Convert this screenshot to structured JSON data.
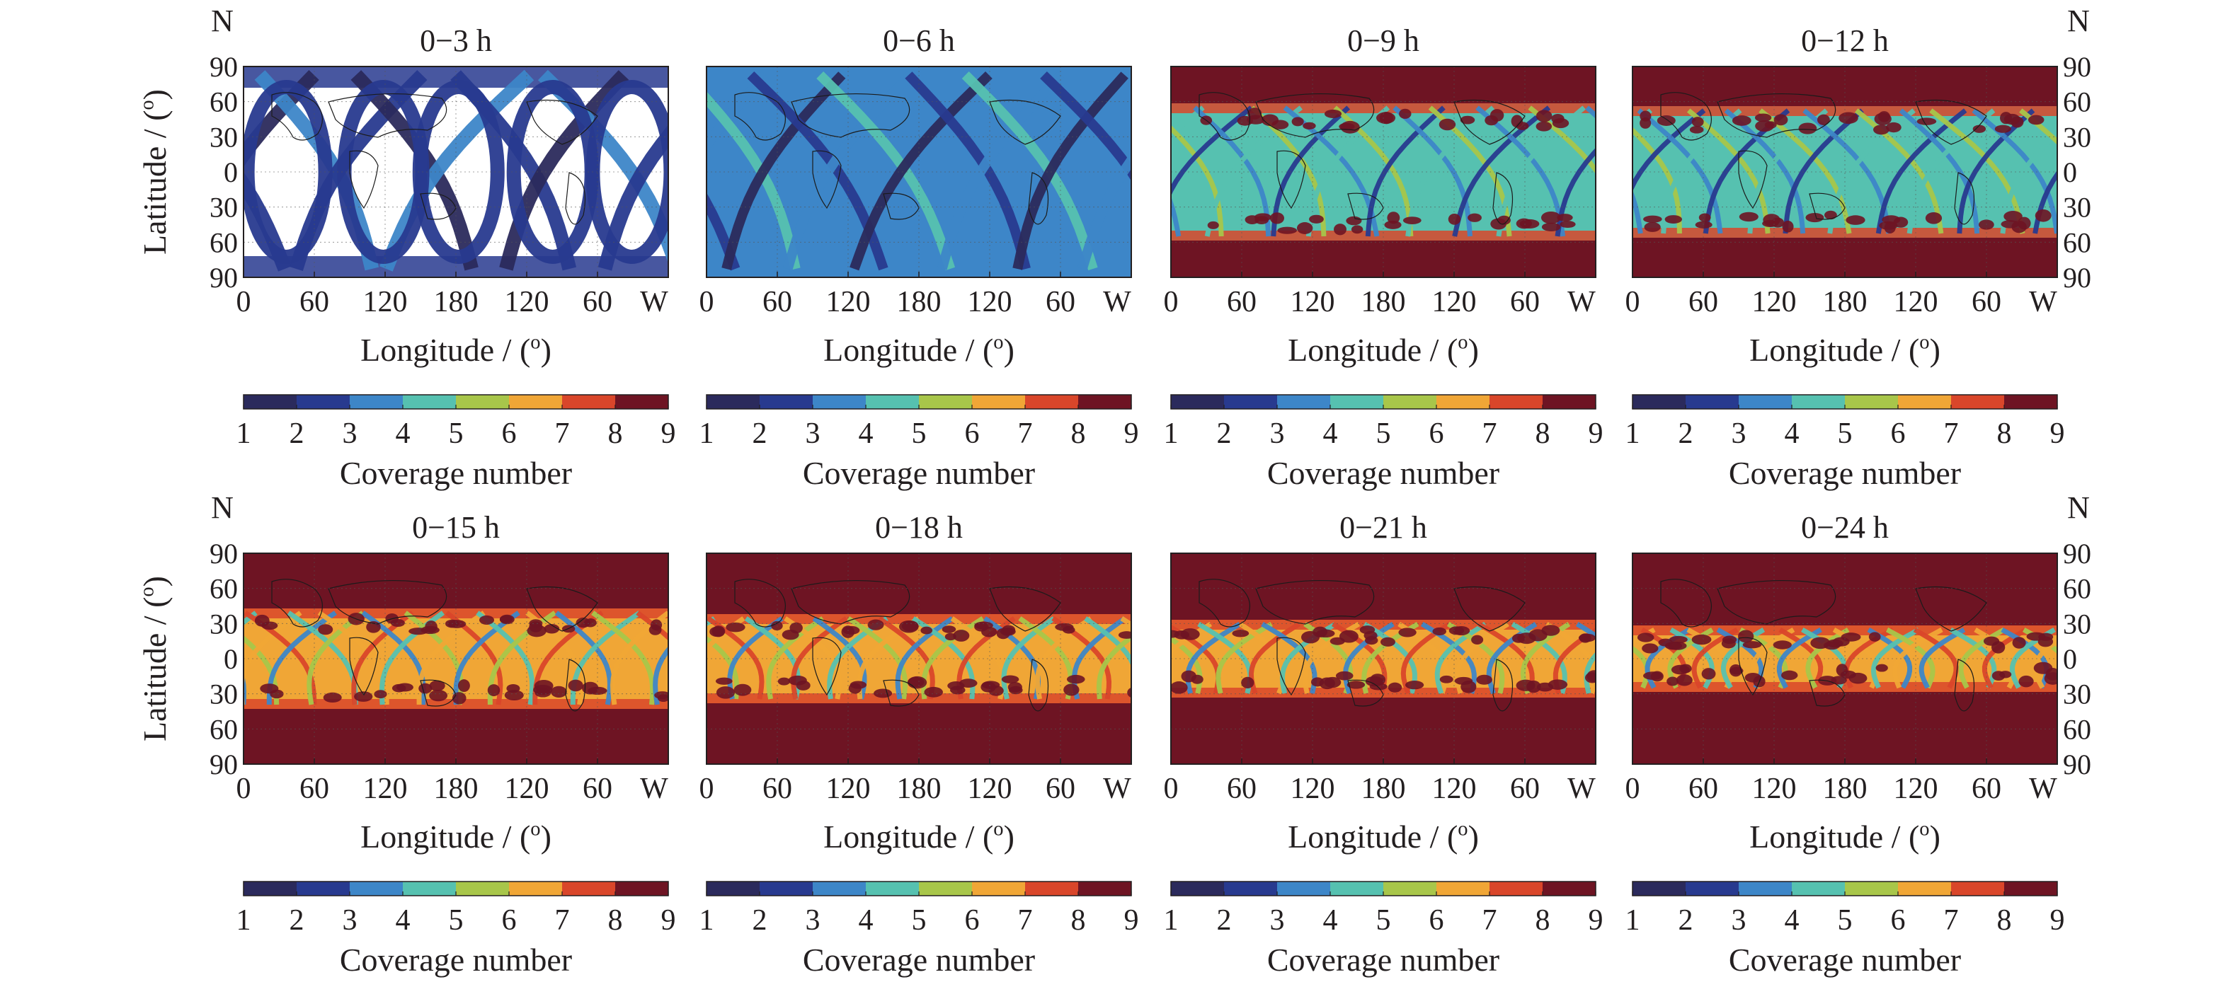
{
  "figure": {
    "north_label": "N",
    "west_label": "W",
    "ylabel": "Latitude / (o)",
    "xlabel": "Longitude / (o)",
    "colorbar_label": "Coverage number",
    "lat_ticks": [
      "90",
      "60",
      "30",
      "0",
      "30",
      "60",
      "90"
    ],
    "lon_ticks": [
      "0",
      "60",
      "120",
      "180",
      "120",
      "60"
    ],
    "colorbar_ticks": [
      "1",
      "2",
      "3",
      "4",
      "5",
      "6",
      "7",
      "8",
      "9"
    ],
    "colorscale": [
      "#2b2a5c",
      "#283a8f",
      "#3d86c8",
      "#56c1b0",
      "#a8c64a",
      "#f0a636",
      "#d9462a",
      "#6e1423"
    ]
  },
  "chart_data": [
    {
      "type": "heatmap",
      "title": "0−3 h",
      "xlabel": "Longitude / (o)",
      "ylabel": "Latitude / (o)",
      "colorbar": "Coverage number",
      "colorbar_range": [
        1,
        9
      ],
      "grid": true
    },
    {
      "type": "heatmap",
      "title": "0−6 h",
      "xlabel": "Longitude / (o)",
      "ylabel": "",
      "colorbar": "Coverage number",
      "colorbar_range": [
        1,
        9
      ],
      "grid": true
    },
    {
      "type": "heatmap",
      "title": "0−9 h",
      "xlabel": "Longitude / (o)",
      "ylabel": "",
      "colorbar": "Coverage number",
      "colorbar_range": [
        1,
        9
      ],
      "grid": true
    },
    {
      "type": "heatmap",
      "title": "0−12 h",
      "xlabel": "Longitude / (o)",
      "ylabel": "",
      "colorbar": "Coverage number",
      "colorbar_range": [
        1,
        9
      ],
      "grid": true
    },
    {
      "type": "heatmap",
      "title": "0−15 h",
      "xlabel": "Longitude / (o)",
      "ylabel": "Latitude / (o)",
      "colorbar": "Coverage number",
      "colorbar_range": [
        1,
        9
      ],
      "grid": true
    },
    {
      "type": "heatmap",
      "title": "0−18 h",
      "xlabel": "Longitude / (o)",
      "ylabel": "",
      "colorbar": "Coverage number",
      "colorbar_range": [
        1,
        9
      ],
      "grid": true
    },
    {
      "type": "heatmap",
      "title": "0−21 h",
      "xlabel": "Longitude / (o)",
      "ylabel": "",
      "colorbar": "Coverage number",
      "colorbar_range": [
        1,
        9
      ],
      "grid": true
    },
    {
      "type": "heatmap",
      "title": "0−24 h",
      "xlabel": "Longitude / (o)",
      "ylabel": "",
      "colorbar": "Coverage number",
      "colorbar_range": [
        1,
        9
      ],
      "grid": true
    }
  ]
}
